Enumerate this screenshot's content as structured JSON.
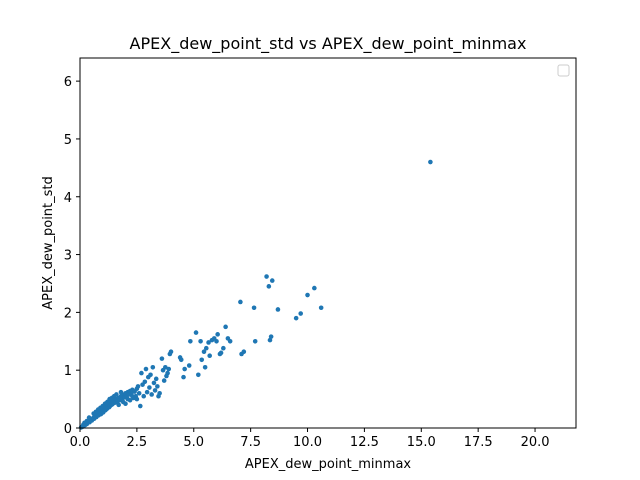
{
  "chart_data": {
    "type": "scatter",
    "title": "APEX_dew_point_std vs APEX_dew_point_minmax",
    "xlabel": "APEX_dew_point_minmax",
    "ylabel": "APEX_dew_point_std",
    "xlim": [
      0,
      21.8
    ],
    "ylim": [
      0,
      6.4
    ],
    "xticks": [
      0.0,
      2.5,
      5.0,
      7.5,
      10.0,
      12.5,
      15.0,
      17.5,
      20.0
    ],
    "xtick_labels": [
      "0.0",
      "2.5",
      "5.0",
      "7.5",
      "10.0",
      "12.5",
      "15.0",
      "17.5",
      "20.0"
    ],
    "yticks": [
      0,
      1,
      2,
      3,
      4,
      5,
      6
    ],
    "ytick_labels": [
      "0",
      "1",
      "2",
      "3",
      "4",
      "5",
      "6"
    ],
    "grid": false,
    "legend": {
      "placement": "top-right",
      "entries": []
    },
    "marker_color": "#1f77b4",
    "points": [
      [
        0.05,
        0.01
      ],
      [
        0.1,
        0.02
      ],
      [
        0.12,
        0.03
      ],
      [
        0.15,
        0.04
      ],
      [
        0.18,
        0.05
      ],
      [
        0.2,
        0.06
      ],
      [
        0.22,
        0.05
      ],
      [
        0.25,
        0.07
      ],
      [
        0.28,
        0.08
      ],
      [
        0.3,
        0.07
      ],
      [
        0.32,
        0.09
      ],
      [
        0.35,
        0.1
      ],
      [
        0.38,
        0.11
      ],
      [
        0.4,
        0.12
      ],
      [
        0.42,
        0.1
      ],
      [
        0.45,
        0.13
      ],
      [
        0.48,
        0.14
      ],
      [
        0.5,
        0.15
      ],
      [
        0.52,
        0.13
      ],
      [
        0.55,
        0.16
      ],
      [
        0.58,
        0.17
      ],
      [
        0.6,
        0.18
      ],
      [
        0.62,
        0.16
      ],
      [
        0.65,
        0.19
      ],
      [
        0.68,
        0.2
      ],
      [
        0.7,
        0.21
      ],
      [
        0.72,
        0.19
      ],
      [
        0.75,
        0.22
      ],
      [
        0.78,
        0.23
      ],
      [
        0.8,
        0.25
      ],
      [
        0.82,
        0.22
      ],
      [
        0.85,
        0.26
      ],
      [
        0.88,
        0.27
      ],
      [
        0.9,
        0.28
      ],
      [
        0.92,
        0.24
      ],
      [
        0.95,
        0.3
      ],
      [
        0.98,
        0.29
      ],
      [
        1.0,
        0.32
      ],
      [
        1.02,
        0.27
      ],
      [
        1.05,
        0.33
      ],
      [
        1.08,
        0.3
      ],
      [
        1.1,
        0.35
      ],
      [
        1.12,
        0.31
      ],
      [
        1.15,
        0.36
      ],
      [
        1.18,
        0.33
      ],
      [
        1.2,
        0.38
      ],
      [
        1.22,
        0.35
      ],
      [
        1.25,
        0.4
      ],
      [
        1.28,
        0.36
      ],
      [
        1.3,
        0.42
      ],
      [
        1.32,
        0.38
      ],
      [
        1.35,
        0.43
      ],
      [
        1.38,
        0.4
      ],
      [
        1.4,
        0.45
      ],
      [
        1.42,
        0.41
      ],
      [
        1.45,
        0.47
      ],
      [
        1.48,
        0.43
      ],
      [
        1.5,
        0.48
      ],
      [
        1.55,
        0.44
      ],
      [
        1.6,
        0.5
      ],
      [
        1.65,
        0.46
      ],
      [
        1.7,
        0.52
      ],
      [
        1.75,
        0.48
      ],
      [
        1.8,
        0.55
      ],
      [
        1.85,
        0.5
      ],
      [
        1.9,
        0.57
      ],
      [
        1.95,
        0.53
      ],
      [
        2.0,
        0.6
      ],
      [
        2.05,
        0.55
      ],
      [
        2.1,
        0.62
      ],
      [
        2.15,
        0.58
      ],
      [
        2.2,
        0.64
      ],
      [
        2.25,
        0.6
      ],
      [
        2.3,
        0.66
      ],
      [
        2.35,
        0.52
      ],
      [
        2.4,
        0.63
      ],
      [
        2.45,
        0.55
      ],
      [
        2.5,
        0.68
      ],
      [
        0.7,
        0.28
      ],
      [
        0.9,
        0.35
      ],
      [
        1.1,
        0.42
      ],
      [
        1.3,
        0.5
      ],
      [
        1.5,
        0.55
      ],
      [
        1.7,
        0.4
      ],
      [
        1.9,
        0.45
      ],
      [
        2.1,
        0.5
      ],
      [
        2.3,
        0.55
      ],
      [
        0.6,
        0.25
      ],
      [
        0.8,
        0.32
      ],
      [
        1.0,
        0.38
      ],
      [
        1.2,
        0.45
      ],
      [
        1.4,
        0.52
      ],
      [
        1.6,
        0.58
      ],
      [
        1.8,
        0.62
      ],
      [
        2.0,
        0.42
      ],
      [
        2.2,
        0.48
      ],
      [
        0.4,
        0.18
      ],
      [
        0.3,
        0.12
      ],
      [
        0.2,
        0.09
      ],
      [
        0.15,
        0.06
      ],
      [
        2.55,
        0.72
      ],
      [
        2.6,
        0.6
      ],
      [
        2.7,
        0.95
      ],
      [
        2.75,
        0.75
      ],
      [
        2.8,
        0.55
      ],
      [
        2.85,
        0.8
      ],
      [
        2.9,
        1.02
      ],
      [
        2.95,
        0.62
      ],
      [
        3.0,
        0.88
      ],
      [
        3.05,
        0.7
      ],
      [
        3.1,
        0.92
      ],
      [
        3.15,
        0.58
      ],
      [
        3.2,
        1.05
      ],
      [
        3.25,
        0.78
      ],
      [
        3.3,
        0.65
      ],
      [
        3.35,
        0.85
      ],
      [
        3.4,
        0.72
      ],
      [
        3.5,
        0.6
      ],
      [
        3.6,
        1.2
      ],
      [
        3.65,
        1.0
      ],
      [
        3.7,
        0.82
      ],
      [
        3.75,
        1.05
      ],
      [
        3.8,
        0.9
      ],
      [
        3.85,
        0.95
      ],
      [
        3.9,
        1.02
      ],
      [
        3.95,
        1.28
      ],
      [
        4.0,
        1.32
      ],
      [
        2.65,
        0.38
      ],
      [
        2.5,
        0.5
      ],
      [
        3.45,
        0.55
      ],
      [
        4.4,
        1.22
      ],
      [
        4.45,
        1.18
      ],
      [
        4.55,
        0.88
      ],
      [
        4.6,
        1.02
      ],
      [
        4.8,
        1.08
      ],
      [
        4.85,
        1.5
      ],
      [
        5.1,
        1.65
      ],
      [
        5.2,
        0.92
      ],
      [
        5.3,
        1.5
      ],
      [
        5.35,
        1.18
      ],
      [
        5.45,
        1.32
      ],
      [
        5.5,
        1.05
      ],
      [
        5.55,
        1.38
      ],
      [
        5.65,
        1.48
      ],
      [
        5.7,
        1.25
      ],
      [
        5.8,
        1.52
      ],
      [
        5.9,
        1.55
      ],
      [
        6.0,
        1.5
      ],
      [
        6.05,
        1.62
      ],
      [
        6.15,
        1.28
      ],
      [
        6.2,
        1.3
      ],
      [
        6.3,
        1.38
      ],
      [
        6.4,
        1.75
      ],
      [
        6.5,
        1.55
      ],
      [
        6.6,
        1.5
      ],
      [
        7.05,
        2.18
      ],
      [
        7.1,
        1.28
      ],
      [
        7.2,
        1.32
      ],
      [
        7.65,
        2.08
      ],
      [
        7.7,
        1.5
      ],
      [
        8.2,
        2.62
      ],
      [
        8.3,
        2.45
      ],
      [
        8.35,
        1.52
      ],
      [
        8.4,
        1.58
      ],
      [
        8.45,
        2.55
      ],
      [
        8.7,
        2.05
      ],
      [
        9.5,
        1.9
      ],
      [
        9.7,
        1.98
      ],
      [
        10.0,
        2.3
      ],
      [
        10.3,
        2.42
      ],
      [
        10.6,
        2.08
      ],
      [
        15.4,
        4.6
      ]
    ]
  }
}
